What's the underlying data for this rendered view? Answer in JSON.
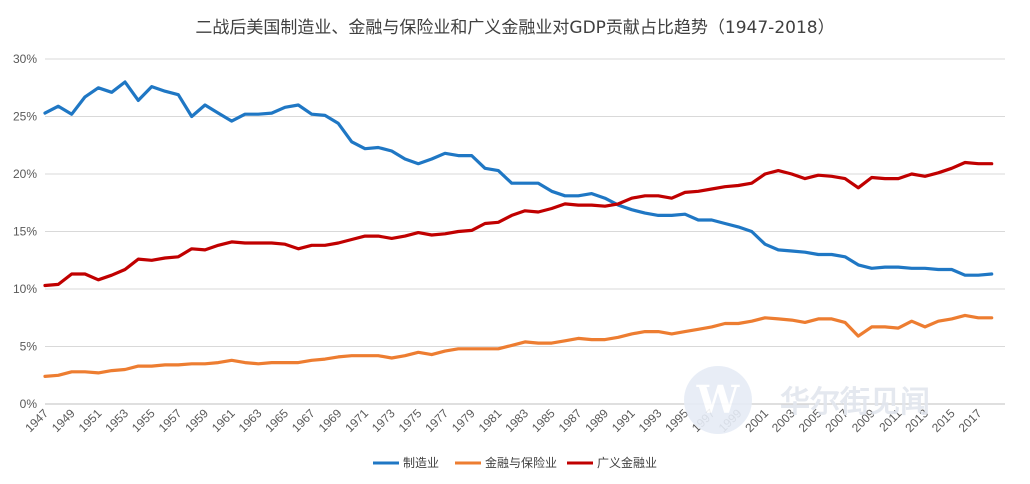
{
  "chart_data": {
    "type": "line",
    "title": "二战后美国制造业、金融与保险业和广义金融业对GDP贡献占比趋势（1947-2018）",
    "xlabel": "",
    "ylabel": "",
    "ylim": [
      0,
      30
    ],
    "y_ticks": [
      "0%",
      "5%",
      "10%",
      "15%",
      "20%",
      "25%",
      "30%"
    ],
    "x_ticks": [
      "1947",
      "1949",
      "1951",
      "1953",
      "1955",
      "1957",
      "1959",
      "1961",
      "1963",
      "1965",
      "1967",
      "1969",
      "1971",
      "1973",
      "1975",
      "1977",
      "1979",
      "1981",
      "1983",
      "1985",
      "1987",
      "1989",
      "1991",
      "1993",
      "1995",
      "1997",
      "1999",
      "2001",
      "2003",
      "2005",
      "2007",
      "2009",
      "2011",
      "2013",
      "2015",
      "2017"
    ],
    "grid": "horizontal",
    "legend_position": "bottom",
    "x": [
      1947,
      1948,
      1949,
      1950,
      1951,
      1952,
      1953,
      1954,
      1955,
      1956,
      1957,
      1958,
      1959,
      1960,
      1961,
      1962,
      1963,
      1964,
      1965,
      1966,
      1967,
      1968,
      1969,
      1970,
      1971,
      1972,
      1973,
      1974,
      1975,
      1976,
      1977,
      1978,
      1979,
      1980,
      1981,
      1982,
      1983,
      1984,
      1985,
      1986,
      1987,
      1988,
      1989,
      1990,
      1991,
      1992,
      1993,
      1994,
      1995,
      1996,
      1997,
      1998,
      1999,
      2000,
      2001,
      2002,
      2003,
      2004,
      2005,
      2006,
      2007,
      2008,
      2009,
      2010,
      2011,
      2012,
      2013,
      2014,
      2015,
      2016,
      2017,
      2018
    ],
    "series": [
      {
        "name": "制造业",
        "color": "#1f77c4",
        "values": [
          25.3,
          25.9,
          25.2,
          26.7,
          27.5,
          27.1,
          28.0,
          26.4,
          27.6,
          27.2,
          26.9,
          25.0,
          26.0,
          25.3,
          24.6,
          25.2,
          25.2,
          25.3,
          25.8,
          26.0,
          25.2,
          25.1,
          24.4,
          22.8,
          22.2,
          22.3,
          22.0,
          21.3,
          20.9,
          21.3,
          21.8,
          21.6,
          21.6,
          20.5,
          20.3,
          19.2,
          19.2,
          19.2,
          18.5,
          18.1,
          18.1,
          18.3,
          17.9,
          17.3,
          16.9,
          16.6,
          16.4,
          16.4,
          16.5,
          16.0,
          16.0,
          15.7,
          15.4,
          15.0,
          13.9,
          13.4,
          13.3,
          13.2,
          13.0,
          13.0,
          12.8,
          12.1,
          11.8,
          11.9,
          11.9,
          11.8,
          11.8,
          11.7,
          11.7,
          11.2,
          11.2,
          11.3
        ]
      },
      {
        "name": "金融与保险业",
        "color": "#ed7d31",
        "values": [
          2.4,
          2.5,
          2.8,
          2.8,
          2.7,
          2.9,
          3.0,
          3.3,
          3.3,
          3.4,
          3.4,
          3.5,
          3.5,
          3.6,
          3.8,
          3.6,
          3.5,
          3.6,
          3.6,
          3.6,
          3.8,
          3.9,
          4.1,
          4.2,
          4.2,
          4.2,
          4.0,
          4.2,
          4.5,
          4.3,
          4.6,
          4.8,
          4.8,
          4.8,
          4.8,
          5.1,
          5.4,
          5.3,
          5.3,
          5.5,
          5.7,
          5.6,
          5.6,
          5.8,
          6.1,
          6.3,
          6.3,
          6.1,
          6.3,
          6.5,
          6.7,
          7.0,
          7.0,
          7.2,
          7.5,
          7.4,
          7.3,
          7.1,
          7.4,
          7.4,
          7.1,
          5.9,
          6.7,
          6.7,
          6.6,
          7.2,
          6.7,
          7.2,
          7.4,
          7.7,
          7.5,
          7.5
        ]
      },
      {
        "name": "广义金融业",
        "color": "#c00000",
        "values": [
          10.3,
          10.4,
          11.3,
          11.3,
          10.8,
          11.2,
          11.7,
          12.6,
          12.5,
          12.7,
          12.8,
          13.5,
          13.4,
          13.8,
          14.1,
          14.0,
          14.0,
          14.0,
          13.9,
          13.5,
          13.8,
          13.8,
          14.0,
          14.3,
          14.6,
          14.6,
          14.4,
          14.6,
          14.9,
          14.7,
          14.8,
          15.0,
          15.1,
          15.7,
          15.8,
          16.4,
          16.8,
          16.7,
          17.0,
          17.4,
          17.3,
          17.3,
          17.2,
          17.4,
          17.9,
          18.1,
          18.1,
          17.9,
          18.4,
          18.5,
          18.7,
          18.9,
          19.0,
          19.2,
          20.0,
          20.3,
          20.0,
          19.6,
          19.9,
          19.8,
          19.6,
          18.8,
          19.7,
          19.6,
          19.6,
          20.0,
          19.8,
          20.1,
          20.5,
          21.0,
          20.9,
          20.9
        ]
      }
    ]
  },
  "watermark": {
    "logo_letter": "W",
    "text": "华尔街见闻"
  }
}
